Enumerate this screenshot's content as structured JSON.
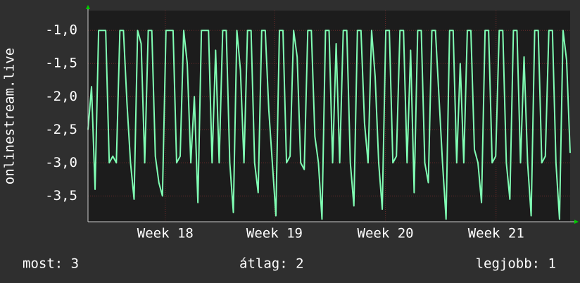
{
  "chart_data": {
    "type": "line",
    "y_label": "onlinestream.live",
    "series": [
      {
        "name": "onlinestream.live",
        "color": "#80ffb4",
        "values": [
          -2.5,
          -1.85,
          -3.4,
          -1.0,
          -1.0,
          -1.0,
          -3.0,
          -2.9,
          -3.0,
          -1.0,
          -1.0,
          -2.1,
          -3.0,
          -3.55,
          -1.0,
          -1.2,
          -3.0,
          -1.0,
          -1.0,
          -2.9,
          -3.3,
          -3.5,
          -1.0,
          -1.0,
          -1.0,
          -3.0,
          -2.9,
          -1.0,
          -1.5,
          -3.0,
          -2.0,
          -3.6,
          -1.0,
          -1.0,
          -1.0,
          -3.0,
          -1.3,
          -3.0,
          -1.0,
          -1.0,
          -3.0,
          -3.75,
          -1.0,
          -1.6,
          -3.0,
          -1.0,
          -1.0,
          -3.0,
          -3.45,
          -1.0,
          -1.0,
          -2.2,
          -3.0,
          -3.8,
          -1.0,
          -1.0,
          -3.0,
          -2.9,
          -1.0,
          -1.4,
          -3.0,
          -3.1,
          -1.0,
          -1.0,
          -2.6,
          -3.0,
          -3.85,
          -1.0,
          -1.0,
          -3.0,
          -1.2,
          -3.0,
          -1.0,
          -1.0,
          -3.0,
          -3.65,
          -1.0,
          -1.0,
          -2.4,
          -3.0,
          -1.0,
          -1.7,
          -3.0,
          -3.7,
          -1.0,
          -1.0,
          -3.0,
          -2.9,
          -1.0,
          -1.0,
          -3.0,
          -1.3,
          -3.45,
          -1.0,
          -1.0,
          -3.0,
          -3.3,
          -1.0,
          -1.0,
          -2.0,
          -3.0,
          -3.85,
          -1.0,
          -1.0,
          -3.0,
          -1.5,
          -3.0,
          -1.0,
          -1.0,
          -2.8,
          -3.0,
          -3.6,
          -1.0,
          -1.0,
          -3.0,
          -2.9,
          -1.0,
          -1.0,
          -3.0,
          -3.55,
          -1.0,
          -1.0,
          -3.0,
          -1.4,
          -3.0,
          -3.8,
          -1.0,
          -1.0,
          -3.0,
          -2.9,
          -1.0,
          -1.0,
          -3.0,
          -3.85,
          -1.0,
          -1.45,
          -2.85
        ]
      }
    ],
    "xlim": [
      0,
      136
    ],
    "xticks": [
      {
        "value": 21.8,
        "label": "Week 18"
      },
      {
        "value": 52.6,
        "label": "Week 19"
      },
      {
        "value": 83.9,
        "label": "Week 20"
      },
      {
        "value": 115.1,
        "label": "Week 21"
      }
    ],
    "ylim": [
      -3.89,
      -0.7
    ],
    "yticks": [
      {
        "value": -1,
        "label": "-1,0"
      },
      {
        "value": -1.5,
        "label": "-1,5"
      },
      {
        "value": -2,
        "label": "-2,0"
      },
      {
        "value": -2.5,
        "label": "-2,5"
      },
      {
        "value": -3,
        "label": "-3,0"
      },
      {
        "value": -3.5,
        "label": "-3,5"
      }
    ],
    "grid": true,
    "stats": [
      "most: 3",
      "átlag: 2",
      "legjobb: 1"
    ]
  }
}
